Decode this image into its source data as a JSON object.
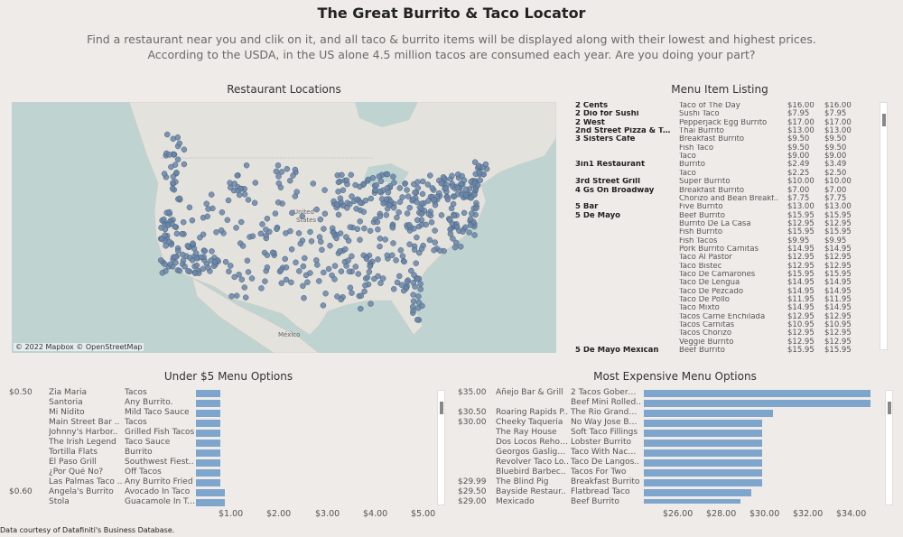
{
  "header": {
    "title": "The Great Burrito & Taco Locator",
    "subtitle_line1": "Find a restaurant near you and clik on it, and all taco & burrito items will be displayed along with their lowest and highest prices.",
    "subtitle_line2": "According to the USDA, in the US alone 4.5 million tacos are consumed each year. Are you doing your part?"
  },
  "map": {
    "title": "Restaurant Locations",
    "attribution": "© 2022 Mapbox © OpenStreetMap",
    "label_united": "United",
    "label_states": "States",
    "label_mexico": "México"
  },
  "listing": {
    "title": "Menu Item Listing",
    "rows": [
      {
        "r": "2 Cents",
        "i": "Taco of The Day",
        "lo": "$16.00",
        "hi": "$16.00"
      },
      {
        "r": "2 Dio for Sushi",
        "i": "Sushi Taco",
        "lo": "$7.95",
        "hi": "$7.95"
      },
      {
        "r": "2 West",
        "i": "Pepperjack Egg Burrito",
        "lo": "$17.00",
        "hi": "$17.00"
      },
      {
        "r": "2nd Street Pizza & Tusc..",
        "i": "Thai Burrito",
        "lo": "$13.00",
        "hi": "$13.00"
      },
      {
        "r": "3 Sisters Cafe",
        "i": "Breakfast Burrito",
        "lo": "$9.50",
        "hi": "$9.50"
      },
      {
        "r": "",
        "i": "Fish Taco",
        "lo": "$9.50",
        "hi": "$9.50"
      },
      {
        "r": "",
        "i": "Taco",
        "lo": "$9.00",
        "hi": "$9.00"
      },
      {
        "r": "3in1 Restaurant",
        "i": "Burrito",
        "lo": "$2.49",
        "hi": "$3.49"
      },
      {
        "r": "",
        "i": "Taco",
        "lo": "$2.25",
        "hi": "$2.50"
      },
      {
        "r": "3rd Street Grill",
        "i": "Super Burrito",
        "lo": "$10.00",
        "hi": "$10.00"
      },
      {
        "r": "4 Gs On Broadway",
        "i": "Breakfast Burrito",
        "lo": "$7.00",
        "hi": "$7.00"
      },
      {
        "r": "",
        "i": "Chorizo and Bean Breakf..",
        "lo": "$7.75",
        "hi": "$7.75"
      },
      {
        "r": "5 Bar",
        "i": "Five Burrito",
        "lo": "$13.00",
        "hi": "$13.00"
      },
      {
        "r": "5 De Mayo",
        "i": "Beef Burrito",
        "lo": "$15.95",
        "hi": "$15.95"
      },
      {
        "r": "",
        "i": "Burrito De La Casa",
        "lo": "$12.95",
        "hi": "$12.95"
      },
      {
        "r": "",
        "i": "Fish Burrito",
        "lo": "$15.95",
        "hi": "$15.95"
      },
      {
        "r": "",
        "i": "Fish Tacos",
        "lo": "$9.95",
        "hi": "$9.95"
      },
      {
        "r": "",
        "i": "Pork Burrito Carnitas",
        "lo": "$14.95",
        "hi": "$14.95"
      },
      {
        "r": "",
        "i": "Taco Al Pastor",
        "lo": "$12.95",
        "hi": "$12.95"
      },
      {
        "r": "",
        "i": "Taco Bistec",
        "lo": "$12.95",
        "hi": "$12.95"
      },
      {
        "r": "",
        "i": "Taco De Camarones",
        "lo": "$15.95",
        "hi": "$15.95"
      },
      {
        "r": "",
        "i": "Taco De Lengua",
        "lo": "$14.95",
        "hi": "$14.95"
      },
      {
        "r": "",
        "i": "Taco De Pezcado",
        "lo": "$14.95",
        "hi": "$14.95"
      },
      {
        "r": "",
        "i": "Taco De Pollo",
        "lo": "$11.95",
        "hi": "$11.95"
      },
      {
        "r": "",
        "i": "Taco Mixto",
        "lo": "$14.95",
        "hi": "$14.95"
      },
      {
        "r": "",
        "i": "Tacos Carne Enchilada",
        "lo": "$12.95",
        "hi": "$12.95"
      },
      {
        "r": "",
        "i": "Tacos Carnitas",
        "lo": "$10.95",
        "hi": "$10.95"
      },
      {
        "r": "",
        "i": "Tacos Chorizo",
        "lo": "$12.95",
        "hi": "$12.95"
      },
      {
        "r": "",
        "i": "Veggie Burrito",
        "lo": "$12.95",
        "hi": "$12.95"
      },
      {
        "r": "5 De Mayo Mexican",
        "i": "Beef Burrito",
        "lo": "$15.95",
        "hi": "$15.95"
      }
    ]
  },
  "under5": {
    "title": "Under $5 Menu Options",
    "rows": [
      {
        "price": "$0.50",
        "r": "Zia Maria",
        "i": "Tacos",
        "v": 0.5
      },
      {
        "price": "",
        "r": "Santoria",
        "i": "Any Burrito.",
        "v": 0.5
      },
      {
        "price": "",
        "r": "Mi Nidito",
        "i": "Mild Taco Sauce",
        "v": 0.5
      },
      {
        "price": "",
        "r": "Main Street Bar ..",
        "i": "Tacos",
        "v": 0.5
      },
      {
        "price": "",
        "r": "Johnny's Harbor..",
        "i": "Grilled Fish Tacos",
        "v": 0.5
      },
      {
        "price": "",
        "r": "The Irish Legend",
        "i": "Taco Sauce",
        "v": 0.5
      },
      {
        "price": "",
        "r": "Tortilla Flats",
        "i": "Burrito",
        "v": 0.5
      },
      {
        "price": "",
        "r": "El Paso Grill",
        "i": "Southwest Fiest..",
        "v": 0.5
      },
      {
        "price": "",
        "r": "¿Por Qué No?",
        "i": "Off Tacos",
        "v": 0.5
      },
      {
        "price": "",
        "r": "Las Palmas Taco ..",
        "i": "Any Burrito Fried",
        "v": 0.5
      },
      {
        "price": "$0.60",
        "r": "Angela's Burrito",
        "i": "Avocado In Taco",
        "v": 0.6
      },
      {
        "price": "",
        "r": "Stola",
        "i": "Guacamole In Ta..",
        "v": 0.6
      }
    ],
    "axis": [
      "$1.00",
      "$2.00",
      "$3.00",
      "$4.00",
      "$5.00"
    ]
  },
  "expensive": {
    "title": "Most Expensive Menu Options",
    "rows": [
      {
        "price": "$35.00",
        "r": "Añejo Bar & Grill",
        "i": "2 Tacos Goberna..",
        "v": 35.0
      },
      {
        "price": "",
        "r": "",
        "i": "Beef Mini Rolled..",
        "v": 35.0
      },
      {
        "price": "$30.50",
        "r": "Roaring Rapids P..",
        "i": "The Rio Grande T..",
        "v": 30.5
      },
      {
        "price": "$30.00",
        "r": "Cheeky Taqueria",
        "i": "No Way Jose Bur..",
        "v": 30.0
      },
      {
        "price": "",
        "r": "The Ray House",
        "i": "Soft Taco Fillings",
        "v": 30.0
      },
      {
        "price": "",
        "r": "Dos Locos Rehob..",
        "i": "Lobster Burrito",
        "v": 30.0
      },
      {
        "price": "",
        "r": "Georgos Gaslight..",
        "i": "Taco With Nacho..",
        "v": 30.0
      },
      {
        "price": "",
        "r": "Revolver Taco Lo..",
        "i": "Taco De Langos..",
        "v": 30.0
      },
      {
        "price": "",
        "r": "Bluebird Barbec..",
        "i": "Tacos For Two",
        "v": 30.0
      },
      {
        "price": "$29.99",
        "r": "The Blind Pig",
        "i": "Breakfast Burrito",
        "v": 29.99
      },
      {
        "price": "$29.50",
        "r": "Bayside Restaur..",
        "i": "Flatbread Taco",
        "v": 29.5
      },
      {
        "price": "$29.00",
        "r": "Mexicado",
        "i": "Beef Burrito",
        "v": 29.0
      }
    ],
    "axis": [
      "$26.00",
      "$28.00",
      "$30.00",
      "$32.00",
      "$34.00"
    ]
  },
  "footer": "Data courtesy of Datafiniti's Business Database.",
  "colors": {
    "bar": "#7ea5cc",
    "dot": "#6a86a8",
    "water": "#bfd3d0",
    "land": "#e4e2dd"
  }
}
